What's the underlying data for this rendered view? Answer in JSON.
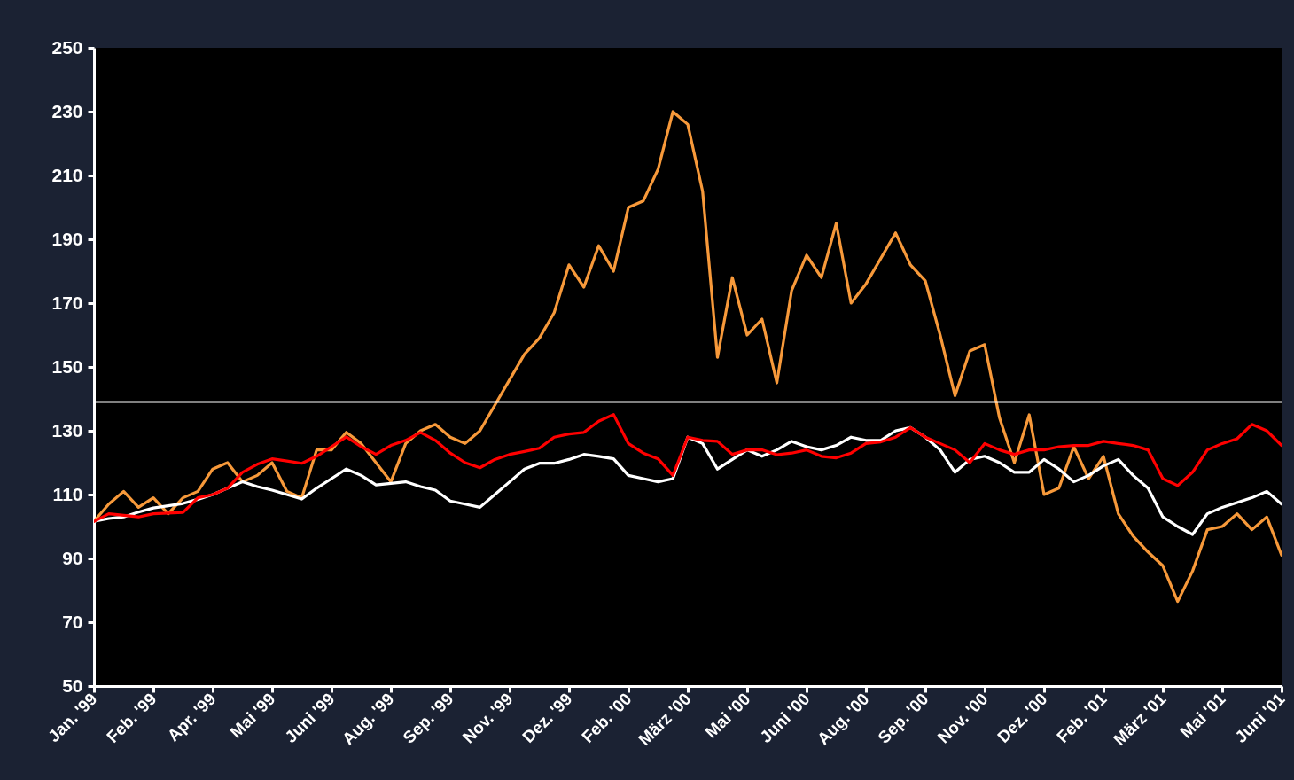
{
  "chart_data": {
    "type": "line",
    "ylim": [
      50,
      250
    ],
    "yticks": [
      50,
      70,
      90,
      110,
      130,
      150,
      170,
      190,
      210,
      230,
      250
    ],
    "categories": [
      "Jan. '99",
      null,
      null,
      null,
      "Feb. '99",
      null,
      null,
      null,
      "Apr. '99",
      null,
      null,
      null,
      "Mai '99",
      null,
      null,
      null,
      "Juni '99",
      null,
      null,
      null,
      "Aug. '99",
      null,
      null,
      null,
      "Sep. '99",
      null,
      null,
      null,
      "Nov. '99",
      null,
      null,
      null,
      "Dez. '99",
      null,
      null,
      null,
      "Feb. '00",
      null,
      null,
      null,
      "März '00",
      null,
      null,
      null,
      "Mai '00",
      null,
      null,
      null,
      "Juni '00",
      null,
      null,
      null,
      "Aug. '00",
      null,
      null,
      null,
      "Sep. '00",
      null,
      null,
      null,
      "Nov. '00",
      null,
      null,
      null,
      "Dez. '00",
      null,
      null,
      null,
      "Feb. '01",
      null,
      null,
      null,
      "März '01",
      null,
      null,
      null,
      "Mai '01",
      null,
      null,
      null,
      "Juni '01"
    ],
    "grid": false,
    "marker": "none",
    "line_style": "solid",
    "ref_lines": [
      {
        "axis": "y",
        "value": 139,
        "color": "#ffffff"
      }
    ],
    "series": [
      {
        "color": "#f7993a",
        "values": [
          101.6,
          107,
          111,
          106,
          109,
          104,
          109,
          111,
          118,
          120,
          114,
          116,
          120,
          111,
          109,
          124,
          124,
          129.5,
          126,
          120,
          114,
          126,
          130,
          132,
          128,
          126,
          130,
          138,
          146,
          154,
          159,
          167,
          182,
          175,
          188,
          180,
          200,
          202,
          212,
          230,
          226,
          205,
          153,
          178,
          160,
          165,
          145,
          174,
          185,
          178,
          195,
          170,
          176,
          184,
          192,
          182,
          177,
          160,
          141,
          155,
          157,
          134,
          120,
          135,
          110,
          112,
          125,
          115,
          122,
          104,
          97,
          92,
          87.7,
          76.5,
          86,
          99,
          100,
          104,
          99,
          103,
          91
        ]
      },
      {
        "color": "#ffffff",
        "values": [
          101.6,
          102.5,
          103,
          104.5,
          105.8,
          106.5,
          107.2,
          108.5,
          110,
          112,
          114,
          112.5,
          111.4,
          110,
          108.6,
          112,
          115,
          118,
          116,
          113,
          113.5,
          114,
          112.5,
          111.4,
          108,
          107,
          106,
          110,
          114,
          118,
          119.8,
          119.8,
          121,
          122.6,
          122,
          121.2,
          116,
          115,
          114,
          115,
          128,
          126,
          118,
          121,
          124,
          122,
          124,
          126.7,
          125,
          124,
          125.4,
          128,
          127,
          127,
          130,
          131,
          128,
          124,
          117,
          121,
          122,
          120,
          117,
          117,
          121,
          118,
          114,
          116,
          119,
          121,
          116,
          112,
          103,
          100,
          97.5,
          104,
          106,
          107.5,
          109,
          111,
          107
        ]
      },
      {
        "color": "#ff0000",
        "values": [
          101.6,
          104,
          103.5,
          103,
          104,
          104.2,
          104.4,
          109,
          110,
          112,
          117,
          119.5,
          121.2,
          120.5,
          119.8,
          122,
          125,
          128.1,
          125,
          122.6,
          125.4,
          127,
          129.5,
          127,
          123,
          120,
          118.4,
          121,
          122.6,
          123.5,
          124.5,
          128,
          129,
          129.5,
          133,
          135.1,
          126,
          123,
          121.2,
          116,
          128,
          127,
          126.7,
          122.6,
          124,
          124,
          122.5,
          123,
          124,
          122,
          121.5,
          123,
          126,
          126.5,
          128,
          131,
          128,
          126,
          124,
          120,
          126,
          124,
          122.6,
          124,
          124,
          125,
          125.4,
          125.4,
          126.7,
          126,
          125.4,
          124,
          115,
          112.8,
          117,
          124,
          126,
          127.5,
          132,
          130,
          125.4
        ]
      }
    ]
  }
}
